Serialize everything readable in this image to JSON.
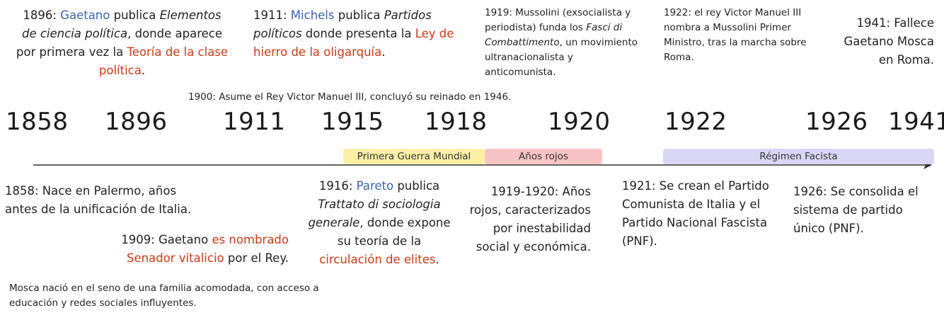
{
  "years": [
    "1858",
    "1896",
    "1911",
    "1915",
    "1918",
    "1920",
    "1922",
    "1926",
    "1941"
  ],
  "bands": {
    "wwi": "Primera Guerra Mundial",
    "red_years": "Años rojos",
    "fascist": "Régimen Facista"
  },
  "colors": {
    "link_blue": "#3b62b0",
    "highlight_red": "#c83a16",
    "band_yellow": "#fbf0a5",
    "band_pink": "#f8c3c6",
    "band_lavender": "#dad6f6"
  },
  "top": {
    "e1896": {
      "a": "1896: ",
      "name": "Gaetano",
      "b": " publica ",
      "title": "Elementos de ciencia política",
      "c": ", donde aparece por primera vez la ",
      "theory": "Teoría de la clase política",
      "d": "."
    },
    "e1911": {
      "a": "1911: ",
      "name": "Michels",
      "b": " publica ",
      "title": "Partidos políticos",
      "c": " donde presenta la ",
      "law": "Ley de hierro de la oligarquía",
      "d": "."
    },
    "e1919": {
      "a": "1919: Mussolini (exsocialista y periodista) funda los ",
      "title": "Fasci di Combattimento",
      "b": ", un movimiento ultranacionalista y anticomunista."
    },
    "e1922": "1922: el rey Victor Manuel III nombra a Mussolini Primer Ministro, tras la marcha sobre Roma.",
    "e1941": "1941: Fallece Gaetano Mosca en Roma.",
    "e1900": "1900: Asume el Rey Victor Manuel III, concluyó su reinado en 1946."
  },
  "bottom": {
    "e1858": "1858: Nace en Palermo, años antes de la unificación de Italia.",
    "e1909": {
      "a": "1909: Gaetano ",
      "highlight": "es nombrado Senador vitalicio",
      "b": " por el Rey."
    },
    "e1916": {
      "a": "1916: ",
      "name": "Pareto",
      "b": " publica ",
      "title": "Trattato di sociologia generale",
      "c": ", donde expone su teoría de la ",
      "highlight": "circulación de elites",
      "d": "."
    },
    "e1919_1920": "1919-1920: Años rojos, caracterizados por inestabilidad social y económica.",
    "e1921": "1921: Se crean el Partido Comunista de Italia y el Partido Nacional Fascista (PNF).",
    "e1926": "1926: Se consolida el sistema de partido único (PNF).",
    "mosca_note": "Mosca nació en el seno de una familia acomodada, con acceso a educación y redes sociales influyentes."
  }
}
